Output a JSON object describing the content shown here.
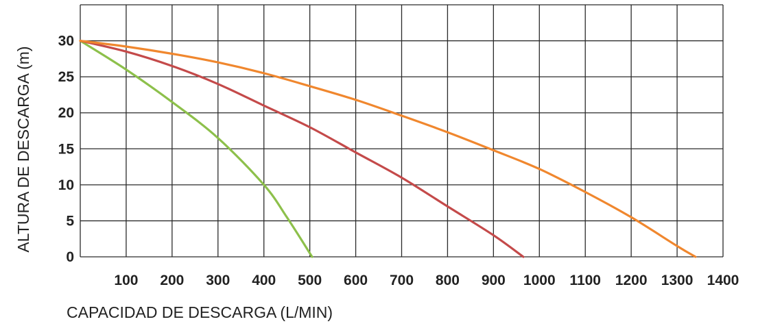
{
  "chart_data": {
    "type": "line",
    "xlabel": "CAPACIDAD DE DESCARGA (L/MIN)",
    "ylabel": "ALTURA DE DESCARGA (m)",
    "xlim": [
      0,
      1400
    ],
    "ylim": [
      0,
      35
    ],
    "x_ticks": [
      "100",
      "200",
      "300",
      "400",
      "500",
      "600",
      "700",
      "800",
      "900",
      "1000",
      "1100",
      "1200",
      "1300",
      "1400"
    ],
    "y_ticks": [
      "0",
      "5",
      "10",
      "15",
      "20",
      "25",
      "30"
    ],
    "grid": true,
    "series": [
      {
        "color": "#8dc04b",
        "points": [
          [
            0,
            30
          ],
          [
            100,
            26
          ],
          [
            200,
            21.5
          ],
          [
            300,
            16.5
          ],
          [
            400,
            10
          ],
          [
            450,
            5.5
          ],
          [
            505,
            0
          ]
        ]
      },
      {
        "color": "#c44a4a",
        "points": [
          [
            0,
            30
          ],
          [
            100,
            28.5
          ],
          [
            200,
            26.5
          ],
          [
            300,
            24
          ],
          [
            400,
            21
          ],
          [
            500,
            18
          ],
          [
            600,
            14.5
          ],
          [
            700,
            11
          ],
          [
            800,
            7
          ],
          [
            900,
            3
          ],
          [
            965,
            0
          ]
        ]
      },
      {
        "color": "#f0872e",
        "points": [
          [
            0,
            30
          ],
          [
            100,
            29.2
          ],
          [
            200,
            28.2
          ],
          [
            300,
            27
          ],
          [
            400,
            25.5
          ],
          [
            500,
            23.7
          ],
          [
            600,
            21.8
          ],
          [
            700,
            19.6
          ],
          [
            800,
            17.3
          ],
          [
            900,
            14.8
          ],
          [
            1000,
            12.2
          ],
          [
            1100,
            9
          ],
          [
            1200,
            5.5
          ],
          [
            1300,
            1.5
          ],
          [
            1340,
            0
          ]
        ]
      }
    ]
  }
}
